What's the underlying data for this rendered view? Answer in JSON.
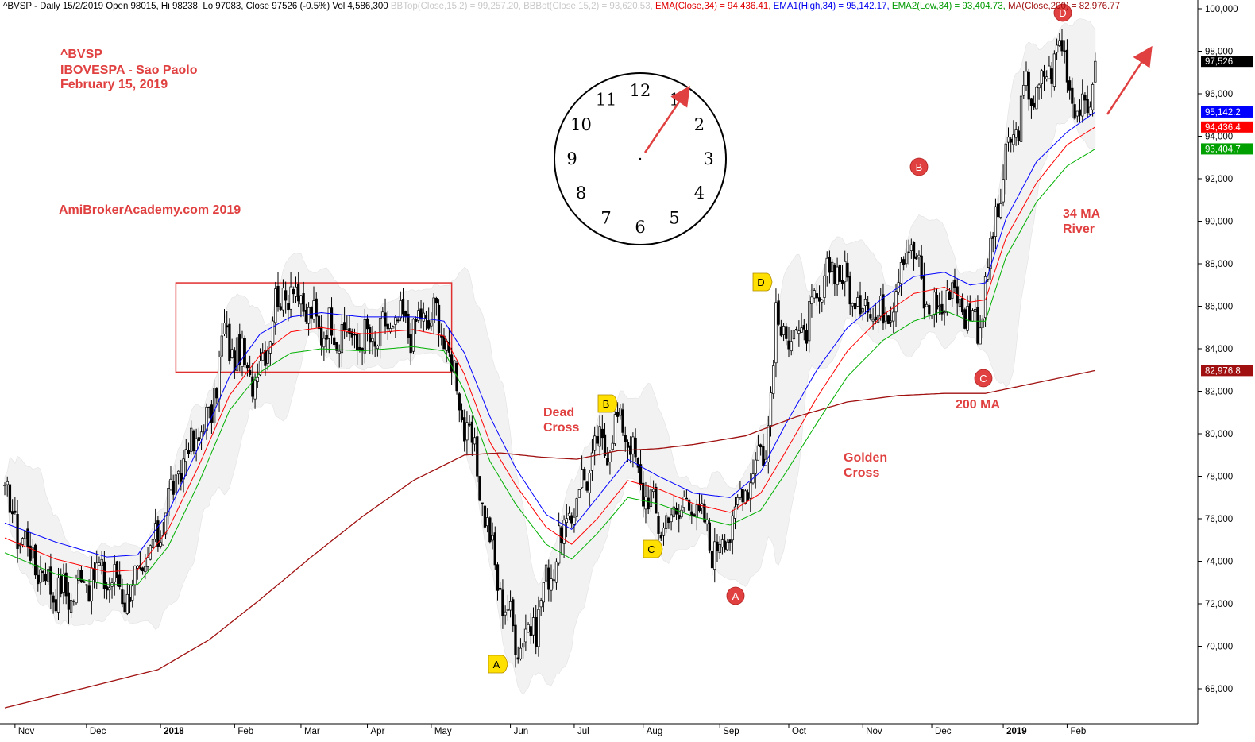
{
  "header": {
    "main": "^BVSP - Daily 15/2/2019 Open 98015, Hi 98238, Lo 97083, Close 97526 (-0.5%) Vol 4,586,300",
    "bbtop": "BBTop(Close,15,2) = 99,257.20,",
    "bbbot": "BBBot(Close,15,2) = 93,620.53,",
    "ema": "EMA(Close,34) = 94,436.41,",
    "ema1": "EMA1(High,34) = 95,142.17,",
    "ema2": "EMA2(Low,34) = 93,404.73,",
    "ma": "MA(Close,200) = 82,976.77"
  },
  "title_block": {
    "symbol": "^BVSP",
    "name": "IBOVESPA - Sao Paolo",
    "date": "February 15, 2019"
  },
  "watermark": "AmiBrokerAcademy.com   2019",
  "annotations": {
    "dead_cross": "Dead\nCross",
    "golden_cross": "Golden\nCross",
    "ma34_river": "34 MA\nRiver",
    "ma200": "200 MA"
  },
  "markers": [
    {
      "label": "A",
      "color": "yellow"
    },
    {
      "label": "B",
      "color": "yellow"
    },
    {
      "label": "C",
      "color": "yellow"
    },
    {
      "label": "D",
      "color": "yellow"
    },
    {
      "label": "A",
      "color": "red"
    },
    {
      "label": "B",
      "color": "red"
    },
    {
      "label": "C",
      "color": "red"
    },
    {
      "label": "D",
      "color": "red"
    }
  ],
  "clock": {
    "numbers": [
      "12",
      "1",
      "2",
      "3",
      "4",
      "5",
      "6",
      "7",
      "8",
      "9",
      "10",
      "11"
    ]
  },
  "chart_data": {
    "type": "candlestick",
    "x_tick_labels": [
      "Nov",
      "Dec",
      "2018",
      "Feb",
      "Mar",
      "Apr",
      "May",
      "Jun",
      "Jul",
      "Aug",
      "Sep",
      "Oct",
      "Nov",
      "Dec",
      "2019",
      "Feb"
    ],
    "y_tick_labels": [
      "68,000",
      "70,000",
      "72,000",
      "74,000",
      "76,000",
      "78,000",
      "80,000",
      "82,000",
      "84,000",
      "86,000",
      "88,000",
      "90,000",
      "92,000",
      "94,000",
      "96,000",
      "98,000",
      "100,000"
    ],
    "ylim": [
      66500,
      100600
    ],
    "price_close_path": [
      [
        0,
        77000
      ],
      [
        8,
        74800
      ],
      [
        16,
        73200
      ],
      [
        24,
        72300
      ],
      [
        31,
        73300
      ],
      [
        40,
        73300
      ],
      [
        48,
        72500
      ],
      [
        56,
        73800
      ],
      [
        64,
        76800
      ],
      [
        72,
        79300
      ],
      [
        80,
        80600
      ],
      [
        86,
        84600
      ],
      [
        92,
        83500
      ],
      [
        98,
        82500
      ],
      [
        106,
        86000
      ],
      [
        112,
        87000
      ],
      [
        120,
        85300
      ],
      [
        128,
        84900
      ],
      [
        136,
        84500
      ],
      [
        144,
        84300
      ],
      [
        152,
        85200
      ],
      [
        160,
        85000
      ],
      [
        168,
        85700
      ],
      [
        174,
        83900
      ],
      [
        180,
        80500
      ],
      [
        186,
        77800
      ],
      [
        190,
        74800
      ],
      [
        196,
        71700
      ],
      [
        202,
        70200
      ],
      [
        208,
        71200
      ],
      [
        214,
        73800
      ],
      [
        220,
        75600
      ],
      [
        226,
        77700
      ],
      [
        232,
        79300
      ],
      [
        238,
        79900
      ],
      [
        242,
        80900
      ],
      [
        246,
        78800
      ],
      [
        252,
        76800
      ],
      [
        258,
        75700
      ],
      [
        264,
        76500
      ],
      [
        270,
        76900
      ],
      [
        276,
        74800
      ],
      [
        282,
        75000
      ],
      [
        288,
        76900
      ],
      [
        294,
        78900
      ],
      [
        298,
        79200
      ],
      [
        302,
        85000
      ],
      [
        308,
        84700
      ],
      [
        314,
        84900
      ],
      [
        320,
        86700
      ],
      [
        326,
        88200
      ],
      [
        332,
        86100
      ],
      [
        338,
        86200
      ],
      [
        344,
        85400
      ],
      [
        350,
        87400
      ],
      [
        354,
        89400
      ],
      [
        360,
        86400
      ],
      [
        366,
        85700
      ],
      [
        370,
        87000
      ],
      [
        375,
        86000
      ],
      [
        381,
        85200
      ],
      [
        384,
        86700
      ],
      [
        388,
        90200
      ],
      [
        394,
        93700
      ],
      [
        400,
        96000
      ],
      [
        406,
        96200
      ],
      [
        412,
        98200
      ],
      [
        416,
        97500
      ],
      [
        420,
        94800
      ],
      [
        424,
        95500
      ],
      [
        427,
        97500
      ]
    ],
    "series": [
      {
        "name": "EMA(Close,34)",
        "color": "#ff0000",
        "values": [
          [
            0,
            75100
          ],
          [
            20,
            74100
          ],
          [
            40,
            73500
          ],
          [
            52,
            73600
          ],
          [
            64,
            75500
          ],
          [
            76,
            78500
          ],
          [
            88,
            81800
          ],
          [
            100,
            83700
          ],
          [
            112,
            84800
          ],
          [
            124,
            85000
          ],
          [
            140,
            84700
          ],
          [
            160,
            84900
          ],
          [
            172,
            84600
          ],
          [
            180,
            82800
          ],
          [
            190,
            79600
          ],
          [
            200,
            77600
          ],
          [
            212,
            75600
          ],
          [
            222,
            74800
          ],
          [
            232,
            76000
          ],
          [
            244,
            77800
          ],
          [
            256,
            77400
          ],
          [
            270,
            76700
          ],
          [
            284,
            76300
          ],
          [
            296,
            77200
          ],
          [
            306,
            79200
          ],
          [
            318,
            81700
          ],
          [
            330,
            83900
          ],
          [
            344,
            85600
          ],
          [
            356,
            86600
          ],
          [
            368,
            86900
          ],
          [
            378,
            86200
          ],
          [
            384,
            86300
          ],
          [
            392,
            89200
          ],
          [
            404,
            91800
          ],
          [
            416,
            93600
          ],
          [
            427,
            94436
          ]
        ]
      },
      {
        "name": "EMA1(High,34)",
        "color": "#0000ff",
        "values": [
          [
            0,
            75800
          ],
          [
            20,
            74900
          ],
          [
            40,
            74200
          ],
          [
            52,
            74300
          ],
          [
            64,
            76300
          ],
          [
            76,
            79400
          ],
          [
            88,
            82700
          ],
          [
            100,
            84700
          ],
          [
            112,
            85500
          ],
          [
            124,
            85700
          ],
          [
            140,
            85500
          ],
          [
            160,
            85500
          ],
          [
            172,
            85300
          ],
          [
            180,
            83800
          ],
          [
            190,
            80800
          ],
          [
            200,
            78400
          ],
          [
            212,
            76200
          ],
          [
            222,
            75500
          ],
          [
            232,
            77000
          ],
          [
            244,
            78800
          ],
          [
            256,
            78000
          ],
          [
            270,
            77200
          ],
          [
            284,
            77000
          ],
          [
            296,
            78200
          ],
          [
            306,
            80500
          ],
          [
            318,
            83000
          ],
          [
            330,
            85000
          ],
          [
            344,
            86400
          ],
          [
            356,
            87400
          ],
          [
            368,
            87600
          ],
          [
            378,
            87000
          ],
          [
            384,
            87100
          ],
          [
            392,
            90100
          ],
          [
            404,
            92800
          ],
          [
            416,
            94200
          ],
          [
            427,
            95142
          ]
        ]
      },
      {
        "name": "EMA2(Low,34)",
        "color": "#00b000",
        "values": [
          [
            0,
            74400
          ],
          [
            20,
            73400
          ],
          [
            40,
            72900
          ],
          [
            52,
            72900
          ],
          [
            64,
            74700
          ],
          [
            76,
            77700
          ],
          [
            88,
            81100
          ],
          [
            100,
            82900
          ],
          [
            112,
            83800
          ],
          [
            124,
            84000
          ],
          [
            140,
            83900
          ],
          [
            160,
            84100
          ],
          [
            172,
            83900
          ],
          [
            180,
            82000
          ],
          [
            190,
            78700
          ],
          [
            200,
            76700
          ],
          [
            212,
            74800
          ],
          [
            222,
            74100
          ],
          [
            232,
            75300
          ],
          [
            244,
            77000
          ],
          [
            256,
            76700
          ],
          [
            270,
            76100
          ],
          [
            284,
            75700
          ],
          [
            296,
            76400
          ],
          [
            306,
            78200
          ],
          [
            318,
            80500
          ],
          [
            330,
            82700
          ],
          [
            344,
            84400
          ],
          [
            356,
            85300
          ],
          [
            368,
            85800
          ],
          [
            378,
            85300
          ],
          [
            384,
            85300
          ],
          [
            392,
            88300
          ],
          [
            404,
            90900
          ],
          [
            416,
            92600
          ],
          [
            427,
            93404
          ]
        ]
      },
      {
        "name": "MA(Close,200)",
        "color": "#a01010",
        "values": [
          [
            0,
            67100
          ],
          [
            20,
            67700
          ],
          [
            40,
            68300
          ],
          [
            60,
            68900
          ],
          [
            80,
            70300
          ],
          [
            100,
            72200
          ],
          [
            120,
            74200
          ],
          [
            140,
            76100
          ],
          [
            160,
            77800
          ],
          [
            180,
            79000
          ],
          [
            194,
            79100
          ],
          [
            210,
            78900
          ],
          [
            224,
            78800
          ],
          [
            240,
            79200
          ],
          [
            256,
            79300
          ],
          [
            270,
            79500
          ],
          [
            290,
            79900
          ],
          [
            310,
            80800
          ],
          [
            330,
            81500
          ],
          [
            350,
            81800
          ],
          [
            368,
            81900
          ],
          [
            384,
            81900
          ],
          [
            400,
            82300
          ],
          [
            416,
            82700
          ],
          [
            427,
            82977
          ]
        ]
      }
    ],
    "last_value_tags": [
      {
        "value": "97,526",
        "color": "#000000"
      },
      {
        "value": "95,142.2",
        "color": "#0000ff"
      },
      {
        "value": "94,436.4",
        "color": "#ff0000"
      },
      {
        "value": "93,404.7",
        "color": "#00a000"
      },
      {
        "value": "82,976.8",
        "color": "#a01010"
      }
    ],
    "consolidation_box": {
      "x_start_bar": 67,
      "x_end_bar": 175,
      "y_low": 82900,
      "y_high": 87100
    }
  }
}
